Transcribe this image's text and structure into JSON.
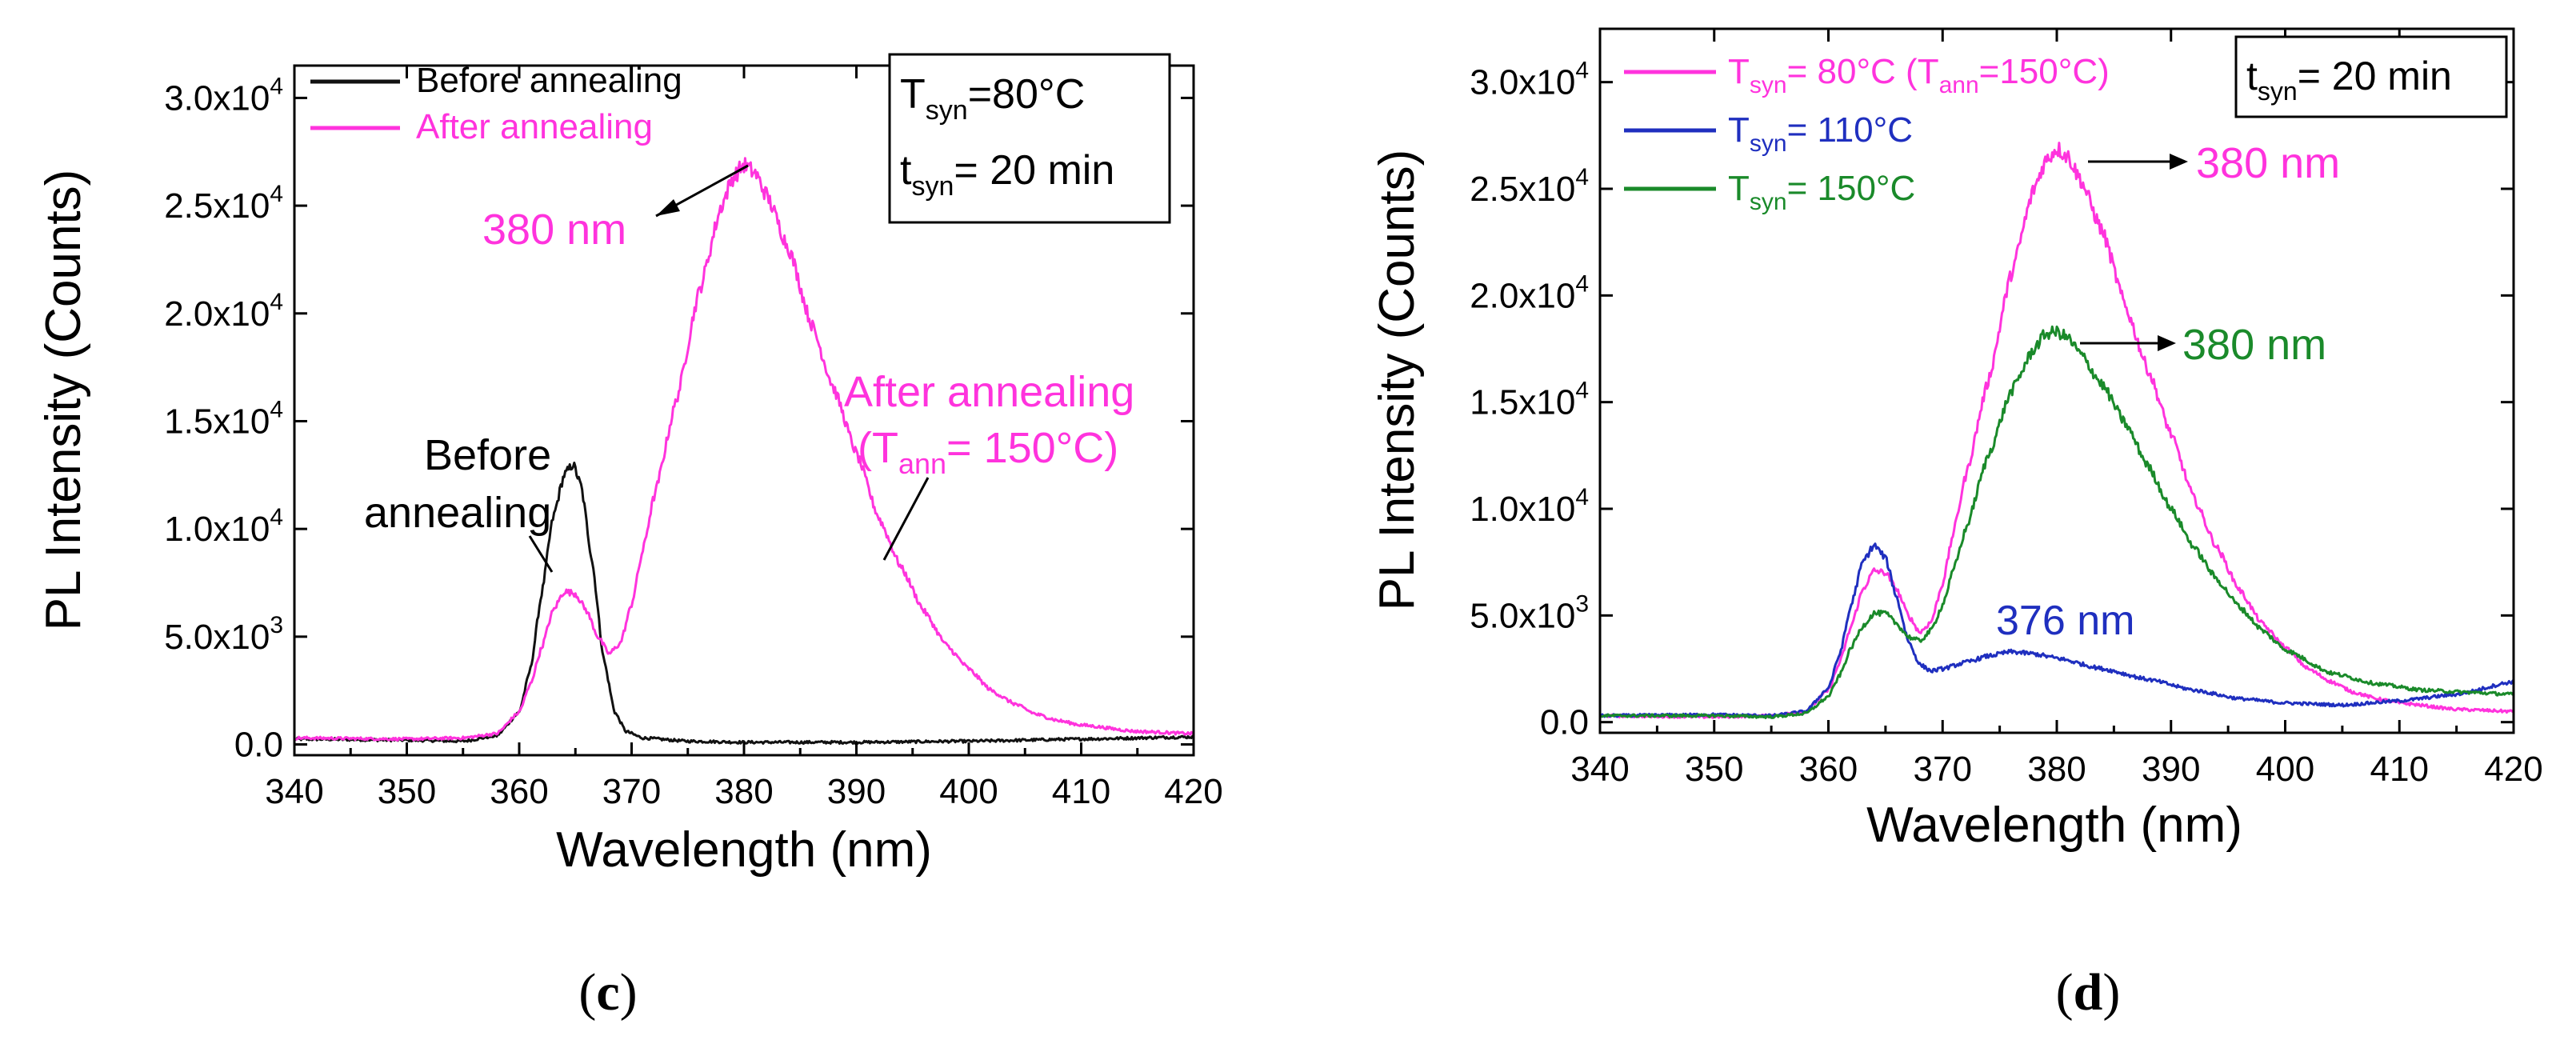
{
  "chart_data": [
    {
      "id": "c",
      "type": "line",
      "panel_label": {
        "open": "(",
        "letter": "c",
        "close": ")"
      },
      "xlabel": "Wavelength (nm)",
      "ylabel": "PL Intensity (Counts)",
      "xlim": [
        340,
        420
      ],
      "ylim": [
        -500,
        31500
      ],
      "x_ticks": [
        340,
        350,
        360,
        370,
        380,
        390,
        400,
        410,
        420
      ],
      "y_ticks": [
        {
          "value": 0,
          "label": "0.0"
        },
        {
          "value": 5000,
          "mantissa": "5.0x10",
          "exp": "3"
        },
        {
          "value": 10000,
          "mantissa": "1.0x10",
          "exp": "4"
        },
        {
          "value": 15000,
          "mantissa": "1.5x10",
          "exp": "4"
        },
        {
          "value": 20000,
          "mantissa": "2.0x10",
          "exp": "4"
        },
        {
          "value": 25000,
          "mantissa": "2.5x10",
          "exp": "4"
        },
        {
          "value": 30000,
          "mantissa": "3.0x10",
          "exp": "4"
        }
      ],
      "series": [
        {
          "name": "Before annealing",
          "color": "#111111",
          "x": [
            340,
            350,
            355,
            358,
            360,
            361,
            362,
            363,
            364,
            364.8,
            365.5,
            366.5,
            367.5,
            368.5,
            369.5,
            371,
            375,
            380,
            390,
            400,
            410,
            420
          ],
          "y": [
            250,
            200,
            150,
            400,
            1500,
            3500,
            7000,
            10500,
            12500,
            13000,
            12000,
            8500,
            4000,
            1500,
            600,
            300,
            150,
            100,
            100,
            150,
            250,
            350
          ]
        },
        {
          "name": "After annealing",
          "color": "#ff33dd",
          "x": [
            340,
            350,
            355,
            358,
            360,
            361,
            362,
            363,
            364,
            365,
            366,
            367,
            368,
            369,
            370,
            371,
            372,
            374,
            376,
            378,
            379,
            380,
            381,
            382,
            384,
            386,
            388,
            390,
            392,
            394,
            396,
            398,
            400,
            402,
            404,
            406,
            408,
            410,
            415,
            420
          ],
          "y": [
            300,
            250,
            300,
            500,
            1500,
            2800,
            4500,
            6200,
            7100,
            7000,
            6200,
            5000,
            4200,
            4700,
            6500,
            9000,
            11500,
            16000,
            21000,
            25000,
            26300,
            26900,
            26500,
            25500,
            23000,
            19500,
            16500,
            13500,
            10500,
            8200,
            6200,
            4600,
            3500,
            2500,
            1900,
            1400,
            1100,
            900,
            600,
            500
          ]
        }
      ],
      "legend": {
        "position": "top-left"
      },
      "info_box": {
        "position": "top-right",
        "line1_main": "T",
        "line1_sub": "syn",
        "line1_rest": "=80°C",
        "line2_main": "t",
        "line2_sub": "syn",
        "line2_rest": "= 20 min"
      },
      "annotations": {
        "peak": "380 nm",
        "before_line1": "Before",
        "before_line2": "annealing",
        "after_line1": "After annealing",
        "after_line2_open": "(T",
        "after_line2_sub": "ann",
        "after_line2_rest": "= 150°C)"
      }
    },
    {
      "id": "d",
      "type": "line",
      "panel_label": {
        "open": "(",
        "letter": "d",
        "close": ")"
      },
      "xlabel": "Wavelength (nm)",
      "ylabel": "PL Intensity (Counts)",
      "xlim": [
        340,
        420
      ],
      "ylim": [
        -500,
        32500
      ],
      "x_ticks": [
        340,
        350,
        360,
        370,
        380,
        390,
        400,
        410,
        420
      ],
      "y_ticks": [
        {
          "value": 0,
          "label": "0.0"
        },
        {
          "value": 5000,
          "mantissa": "5.0x10",
          "exp": "3"
        },
        {
          "value": 10000,
          "mantissa": "1.0x10",
          "exp": "4"
        },
        {
          "value": 15000,
          "mantissa": "1.5x10",
          "exp": "4"
        },
        {
          "value": 20000,
          "mantissa": "2.0x10",
          "exp": "4"
        },
        {
          "value": 25000,
          "mantissa": "2.5x10",
          "exp": "4"
        },
        {
          "value": 30000,
          "mantissa": "3.0x10",
          "exp": "4"
        }
      ],
      "series": [
        {
          "name": "Tsyn= 80°C (Tann=150°C)",
          "color": "#ff33dd",
          "x": [
            340,
            350,
            355,
            358,
            360,
            361,
            362,
            363,
            364,
            365,
            366,
            367,
            368,
            369,
            370,
            371,
            372,
            374,
            376,
            378,
            379,
            380,
            381,
            382,
            384,
            386,
            388,
            390,
            392,
            394,
            396,
            398,
            400,
            402,
            404,
            406,
            408,
            410,
            415,
            420
          ],
          "y": [
            300,
            250,
            300,
            500,
            1500,
            2800,
            4500,
            6200,
            7100,
            7000,
            6200,
            5000,
            4200,
            4700,
            6500,
            9000,
            11500,
            16000,
            21000,
            25000,
            26300,
            26900,
            26500,
            25500,
            23000,
            19500,
            16500,
            13500,
            10500,
            8200,
            6200,
            4600,
            3500,
            2500,
            1900,
            1400,
            1100,
            900,
            600,
            500
          ]
        },
        {
          "name": "Tsyn= 110°C",
          "color": "#1f2fbf",
          "x": [
            340,
            350,
            355,
            358,
            360,
            361,
            362,
            363,
            364,
            365,
            366,
            367,
            368,
            369,
            370,
            372,
            374,
            376,
            378,
            380,
            384,
            388,
            392,
            396,
            400,
            405,
            410,
            415,
            420
          ],
          "y": [
            300,
            350,
            300,
            500,
            1600,
            3200,
            5500,
            7500,
            8300,
            7700,
            5800,
            3800,
            2700,
            2400,
            2500,
            2800,
            3100,
            3300,
            3200,
            3000,
            2500,
            2000,
            1500,
            1100,
            900,
            800,
            1000,
            1300,
            1900
          ]
        },
        {
          "name": "Tsyn= 150°C",
          "color": "#1a8a2a",
          "x": [
            340,
            350,
            355,
            358,
            360,
            361,
            362,
            363,
            364,
            365,
            366,
            367,
            368,
            369,
            370,
            371,
            372,
            374,
            376,
            378,
            379,
            380,
            381,
            382,
            384,
            386,
            388,
            390,
            392,
            394,
            396,
            398,
            400,
            404,
            408,
            412,
            416,
            420
          ],
          "y": [
            300,
            300,
            250,
            400,
            1200,
            2200,
            3500,
            4500,
            5100,
            5100,
            4600,
            4000,
            3800,
            4300,
            5500,
            7200,
            9000,
            12500,
            15500,
            17500,
            18200,
            18300,
            18000,
            17300,
            15800,
            14000,
            12000,
            10000,
            8200,
            6700,
            5400,
            4300,
            3400,
            2300,
            1800,
            1500,
            1400,
            1300
          ]
        }
      ],
      "legend": {
        "position": "top-left"
      },
      "info_box": {
        "position": "top-right",
        "line1_main": "t",
        "line1_sub": "syn",
        "line1_rest": "= 20 min"
      },
      "legend_text": [
        {
          "main": "T",
          "sub": "syn",
          "rest": "= 80°C (T",
          "sub2": "ann",
          "rest2": "=150°C)"
        },
        {
          "main": "T",
          "sub": "syn",
          "rest": "= 110°C"
        },
        {
          "main": "T",
          "sub": "syn",
          "rest": "= 150°C"
        }
      ],
      "annotations": {
        "peak_pink": "380 nm",
        "peak_green": "380 nm",
        "peak_blue": "376 nm"
      }
    }
  ]
}
